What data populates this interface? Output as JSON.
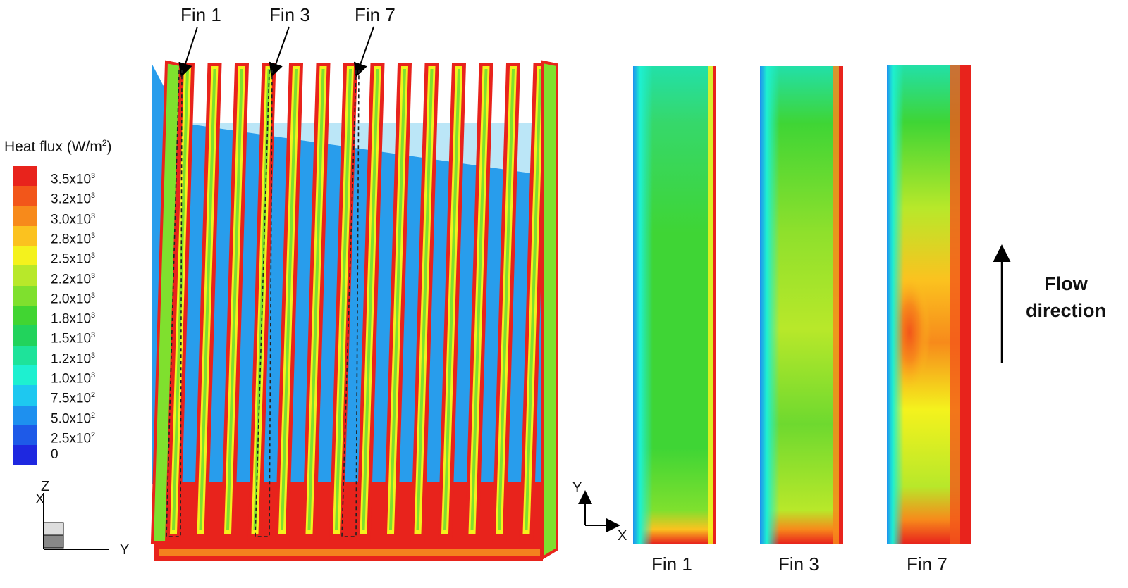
{
  "legend": {
    "title_prefix": "Heat flux (W/m",
    "title_exp": "2",
    "title_suffix": ")",
    "entries": [
      {
        "mant": "3.5x10",
        "exp": "3",
        "color": "#e8231c"
      },
      {
        "mant": "3.2x10",
        "exp": "3",
        "color": "#f2561a"
      },
      {
        "mant": "3.0x10",
        "exp": "3",
        "color": "#f78a1b"
      },
      {
        "mant": "2.8x10",
        "exp": "3",
        "color": "#fbc21f"
      },
      {
        "mant": "2.5x10",
        "exp": "3",
        "color": "#f4f21d"
      },
      {
        "mant": "2.2x10",
        "exp": "3",
        "color": "#b8e82a"
      },
      {
        "mant": "2.0x10",
        "exp": "3",
        "color": "#7fe02e"
      },
      {
        "mant": "1.8x10",
        "exp": "3",
        "color": "#41d532"
      },
      {
        "mant": "1.5x10",
        "exp": "3",
        "color": "#22d35c"
      },
      {
        "mant": "1.2x10",
        "exp": "3",
        "color": "#1ee39a"
      },
      {
        "mant": "1.0x10",
        "exp": "3",
        "color": "#1ef0d0"
      },
      {
        "mant": "7.5x10",
        "exp": "2",
        "color": "#1ec8f0"
      },
      {
        "mant": "5.0x10",
        "exp": "2",
        "color": "#1e90ef"
      },
      {
        "mant": "2.5x10",
        "exp": "2",
        "color": "#1e5ae8"
      },
      {
        "mant": "0",
        "exp": "",
        "color": "#1e28e0"
      }
    ]
  },
  "left_view": {
    "callouts": [
      {
        "label": "Fin 1"
      },
      {
        "label": "Fin 3"
      },
      {
        "label": "Fin 7"
      }
    ],
    "axes": {
      "z": "Z",
      "x": "X",
      "y": "Y"
    }
  },
  "right_views": {
    "fins": [
      {
        "label": "Fin 1"
      },
      {
        "label": "Fin 3"
      },
      {
        "label": "Fin 7"
      }
    ],
    "axes": {
      "y": "Y",
      "x": "X"
    }
  },
  "flow": {
    "line1": "Flow",
    "line2": "direction"
  }
}
